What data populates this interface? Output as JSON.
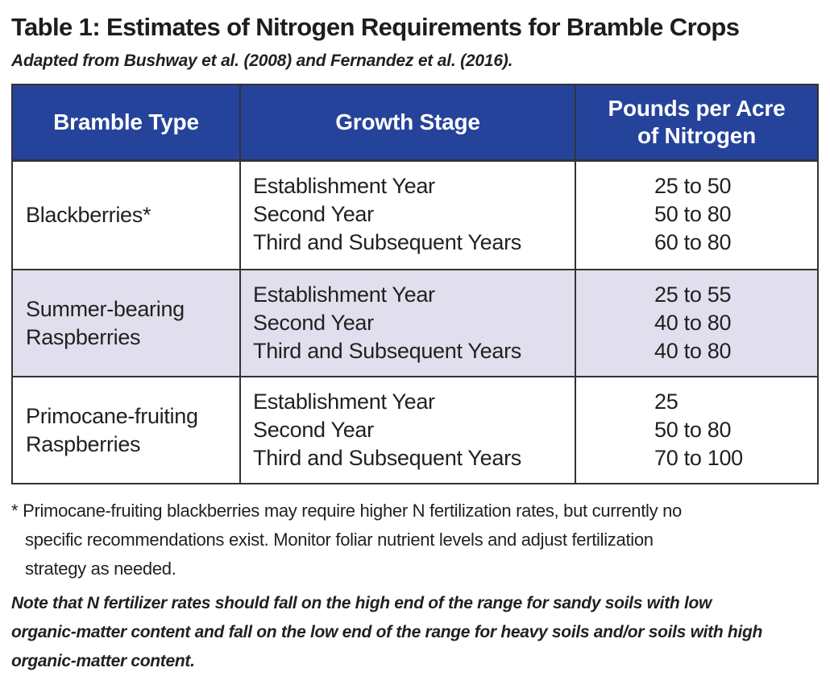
{
  "title": "Table 1: Estimates of Nitrogen Requirements for Bramble Crops",
  "subtitle": "Adapted from Bushway et al. (2008) and Fernandez et al. (2016).",
  "colors": {
    "header_bg": "#25439B",
    "header_text": "#FFFFFF",
    "shaded_row_bg": "#E1DFED",
    "border": "#333333",
    "text": "#231F20"
  },
  "table": {
    "headers": {
      "bramble_type": "Bramble Type",
      "growth_stage": "Growth Stage",
      "pounds_line1": "Pounds per Acre",
      "pounds_line2": "of Nitrogen"
    },
    "rows": [
      {
        "bramble_lines": [
          "Blackberries*"
        ],
        "stages": [
          "Establishment Year",
          "Second Year",
          "Third and Subsequent Years"
        ],
        "values": [
          "25 to 50",
          "50 to 80",
          "60 to 80"
        ]
      },
      {
        "bramble_lines": [
          "Summer-bearing",
          "Raspberries"
        ],
        "stages": [
          "Establishment Year",
          "Second Year",
          "Third and Subsequent Years"
        ],
        "values": [
          "25 to 55",
          "40 to 80",
          "40 to 80"
        ]
      },
      {
        "bramble_lines": [
          "Primocane-fruiting",
          "Raspberries"
        ],
        "stages": [
          "Establishment Year",
          "Second Year",
          "Third and Subsequent Years"
        ],
        "values": [
          "25",
          "50 to 80",
          "70 to 100"
        ]
      }
    ]
  },
  "footnote": {
    "lines": [
      "* Primocane-fruiting blackberries may require higher N fertilization rates, but currently no",
      "specific recommendations exist. Monitor foliar nutrient levels and adjust fertilization",
      "strategy as needed."
    ]
  },
  "note": {
    "lines": [
      "Note that N fertilizer rates should fall on the high end of the range for sandy soils with low",
      "organic-matter content and fall on the low end of the range for heavy soils and/or soils with high",
      "organic-matter content."
    ]
  }
}
